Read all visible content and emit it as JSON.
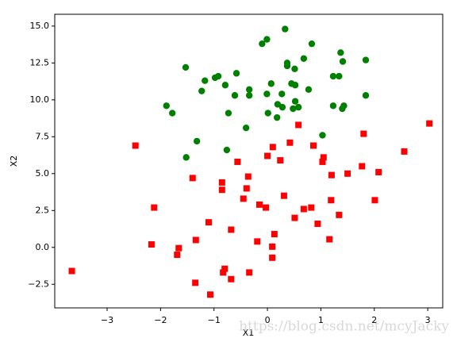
{
  "chart_data": {
    "type": "scatter",
    "xlabel": "X1",
    "ylabel": "X2",
    "watermark": "https://blog.csdn.net/mcyJacky",
    "xlim": [
      -3.98,
      3.28
    ],
    "ylim": [
      -4.1,
      15.8
    ],
    "xticks": [
      {
        "value": -3,
        "label": "−3"
      },
      {
        "value": -2,
        "label": "−2"
      },
      {
        "value": -1,
        "label": "−1"
      },
      0,
      1,
      2,
      3
    ],
    "yticks": [
      {
        "value": -2.5,
        "label": "−2.5"
      },
      {
        "value": 0,
        "label": "0.0"
      },
      {
        "value": 2.5,
        "label": "2.5"
      },
      {
        "value": 5,
        "label": "5.0"
      },
      {
        "value": 7.5,
        "label": "7.5"
      },
      {
        "value": 10,
        "label": "10.0"
      },
      {
        "value": 12.5,
        "label": "12.5"
      },
      {
        "value": 15,
        "label": "15.0"
      }
    ],
    "series": [
      {
        "color": "#008000",
        "marker": "circle",
        "x": [
          -1.53,
          -1.17,
          -0.98,
          -0.92,
          -0.58,
          -1.23,
          -0.79,
          -0.61,
          -0.34,
          -0.34,
          0.07,
          -0.01,
          -0.1,
          -0.01,
          0.33,
          0.37,
          0.37,
          0.51,
          0.68,
          0.83,
          1.37,
          1.41,
          1.84,
          1.23,
          1.34,
          0.45,
          0.52,
          0.77,
          0.27,
          1.84,
          -1.89,
          -1.78,
          -0.73,
          0.19,
          0.28,
          0.52,
          0.58,
          0.48,
          0.01,
          0.18,
          1.23,
          1.43,
          1.4,
          -0.4,
          1.03,
          -1.32,
          -0.76,
          -1.52
        ],
        "values": [
          12.2,
          11.3,
          11.5,
          11.6,
          11.8,
          10.6,
          11.0,
          10.3,
          10.7,
          10.3,
          11.1,
          10.4,
          13.8,
          14.1,
          14.8,
          12.5,
          12.3,
          12.1,
          12.8,
          13.8,
          13.2,
          12.6,
          12.7,
          11.6,
          11.6,
          11.1,
          11.0,
          10.7,
          10.4,
          10.3,
          9.6,
          9.1,
          9.1,
          9.7,
          9.5,
          9.9,
          9.5,
          9.4,
          9.1,
          8.8,
          9.6,
          9.6,
          9.4,
          8.1,
          7.6,
          7.2,
          6.6,
          6.1
        ]
      },
      {
        "color": "#ff0000",
        "marker": "square",
        "x": [
          -3.66,
          -2.47,
          -2.12,
          -2.17,
          -1.66,
          -1.69,
          -1.4,
          -1.34,
          -1.35,
          -1.1,
          -1.07,
          -0.85,
          -0.85,
          -0.8,
          -0.83,
          -0.68,
          -0.68,
          -0.56,
          -0.36,
          -0.39,
          -0.45,
          -0.34,
          -0.19,
          -0.15,
          -0.03,
          0.0,
          0.1,
          0.24,
          0.13,
          0.09,
          0.09,
          0.31,
          0.42,
          0.58,
          0.51,
          0.68,
          0.82,
          0.86,
          0.94,
          1.03,
          1.05,
          1.2,
          1.19,
          1.16,
          1.34,
          1.5,
          1.77,
          1.8,
          2.08,
          2.01,
          2.56,
          3.03
        ],
        "values": [
          -1.6,
          6.9,
          2.7,
          0.2,
          -0.05,
          -0.5,
          4.7,
          0.5,
          -2.4,
          1.7,
          -3.2,
          4.4,
          3.9,
          -1.45,
          -1.7,
          -2.15,
          1.2,
          5.8,
          4.8,
          4.0,
          3.3,
          -1.7,
          0.4,
          2.9,
          2.7,
          6.2,
          6.8,
          5.9,
          0.9,
          0.05,
          -0.7,
          3.5,
          7.1,
          8.3,
          2.0,
          2.6,
          2.7,
          6.9,
          1.6,
          5.8,
          6.1,
          4.9,
          3.2,
          0.55,
          2.2,
          5.0,
          5.5,
          7.7,
          5.1,
          3.2,
          6.5,
          8.4
        ]
      }
    ]
  }
}
